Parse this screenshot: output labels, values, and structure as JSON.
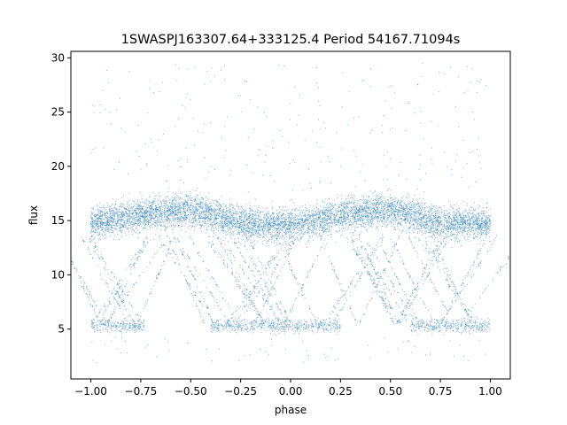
{
  "chart_data": {
    "type": "scatter",
    "title": "1SWASPJ163307.64+333125.4 Period 54167.71094s",
    "xlabel": "phase",
    "ylabel": "flux",
    "xlim": [
      -1.1,
      1.1
    ],
    "ylim": [
      0.4,
      30.6
    ],
    "xticks": [
      -1.0,
      -0.75,
      -0.5,
      -0.25,
      0.0,
      0.25,
      0.5,
      0.75,
      1.0
    ],
    "xtick_labels": [
      "−1.00",
      "−0.75",
      "−0.50",
      "−0.25",
      "0.00",
      "0.25",
      "0.50",
      "0.75",
      "1.00"
    ],
    "yticks": [
      5,
      10,
      15,
      20,
      25,
      30
    ],
    "ytick_labels": [
      "5",
      "10",
      "15",
      "20",
      "25",
      "30"
    ],
    "grid": false,
    "legend": "none",
    "marker_color": "#1f77b4",
    "series": [
      {
        "phase_range": [
          -1.0,
          1.0
        ],
        "main_band": {
          "flux_min_approx": 12.5,
          "flux_max_approx": 17.5,
          "mean_flux_by_phase": {
            "x": [
              -1.0,
              -0.75,
              -0.5,
              -0.25,
              0.0,
              0.25,
              0.5,
              0.75,
              1.0
            ],
            "y": [
              14.8,
              15.5,
              16.0,
              14.8,
              14.5,
              15.5,
              16.0,
              14.8,
              14.8
            ]
          }
        },
        "faint_band": {
          "flux_approx": 5.3,
          "phase_ranges": [
            [
              -1.0,
              -0.73
            ],
            [
              -0.4,
              0.25
            ],
            [
              0.6,
              1.0
            ]
          ]
        }
      }
    ]
  }
}
